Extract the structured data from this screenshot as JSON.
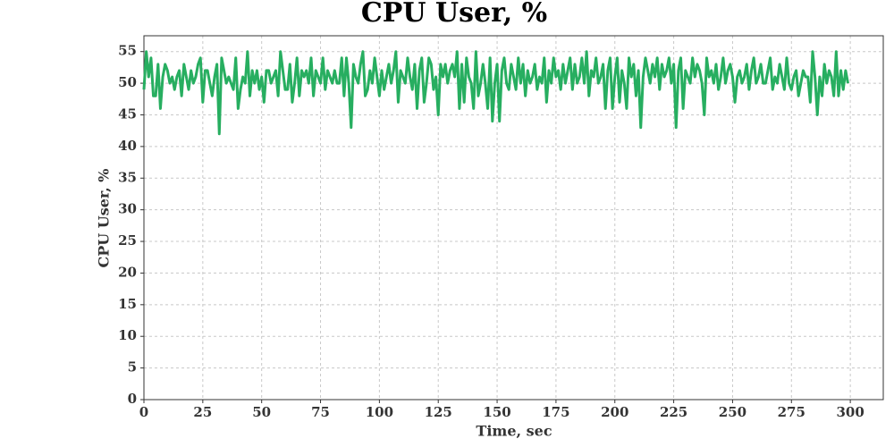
{
  "chart_data": {
    "type": "line",
    "title": "CPU User, %",
    "xlabel": "Time, sec",
    "ylabel": "CPU User, %",
    "x": [
      0,
      1,
      2,
      3,
      4,
      5,
      6,
      7,
      8,
      9,
      10,
      11,
      12,
      13,
      14,
      15,
      16,
      17,
      18,
      19,
      20,
      21,
      22,
      23,
      24,
      25,
      26,
      27,
      28,
      29,
      30,
      31,
      32,
      33,
      34,
      35,
      36,
      37,
      38,
      39,
      40,
      41,
      42,
      43,
      44,
      45,
      46,
      47,
      48,
      49,
      50,
      51,
      52,
      53,
      54,
      55,
      56,
      57,
      58,
      59,
      60,
      61,
      62,
      63,
      64,
      65,
      66,
      67,
      68,
      69,
      70,
      71,
      72,
      73,
      74,
      75,
      76,
      77,
      78,
      79,
      80,
      81,
      82,
      83,
      84,
      85,
      86,
      87,
      88,
      89,
      90,
      91,
      92,
      93,
      94,
      95,
      96,
      97,
      98,
      99,
      100,
      101,
      102,
      103,
      104,
      105,
      106,
      107,
      108,
      109,
      110,
      111,
      112,
      113,
      114,
      115,
      116,
      117,
      118,
      119,
      120,
      121,
      122,
      123,
      124,
      125,
      126,
      127,
      128,
      129,
      130,
      131,
      132,
      133,
      134,
      135,
      136,
      137,
      138,
      139,
      140,
      141,
      142,
      143,
      144,
      145,
      146,
      147,
      148,
      149,
      150,
      151,
      152,
      153,
      154,
      155,
      156,
      157,
      158,
      159,
      160,
      161,
      162,
      163,
      164,
      165,
      166,
      167,
      168,
      169,
      170,
      171,
      172,
      173,
      174,
      175,
      176,
      177,
      178,
      179,
      180,
      181,
      182,
      183,
      184,
      185,
      186,
      187,
      188,
      189,
      190,
      191,
      192,
      193,
      194,
      195,
      196,
      197,
      198,
      199,
      200,
      201,
      202,
      203,
      204,
      205,
      206,
      207,
      208,
      209,
      210,
      211,
      212,
      213,
      214,
      215,
      216,
      217,
      218,
      219,
      220,
      221,
      222,
      223,
      224,
      225,
      226,
      227,
      228,
      229,
      230,
      231,
      232,
      233,
      234,
      235,
      236,
      237,
      238,
      239,
      240,
      241,
      242,
      243,
      244,
      245,
      246,
      247,
      248,
      249,
      250,
      251,
      252,
      253,
      254,
      255,
      256,
      257,
      258,
      259,
      260,
      261,
      262,
      263,
      264,
      265,
      266,
      267,
      268,
      269,
      270,
      271,
      272,
      273,
      274,
      275,
      276,
      277,
      278,
      279,
      280,
      281,
      282,
      283,
      284,
      285,
      286,
      287,
      288,
      289,
      290,
      291,
      292,
      293,
      294,
      295,
      296,
      297,
      298,
      299
    ],
    "series": [
      {
        "name": "CPU User",
        "color": "#27ae60",
        "values": [
          49,
          55,
          51,
          54,
          48,
          48,
          53,
          46,
          51,
          53,
          52,
          50,
          51,
          49,
          51,
          52,
          48,
          53,
          51,
          49,
          52,
          50,
          51,
          53,
          54,
          47,
          52,
          52,
          50,
          48,
          51,
          53,
          42,
          54,
          52,
          50,
          51,
          50,
          49,
          54,
          46,
          49,
          51,
          50,
          55,
          48,
          52,
          50,
          52,
          49,
          51,
          47,
          52,
          52,
          50,
          51,
          52,
          48,
          55,
          52,
          49,
          49,
          53,
          47,
          50,
          54,
          48,
          52,
          51,
          52,
          50,
          54,
          48,
          52,
          51,
          50,
          54,
          49,
          52,
          51,
          50,
          52,
          50,
          50,
          54,
          48,
          54,
          50,
          43,
          53,
          51,
          50,
          53,
          55,
          48,
          49,
          52,
          50,
          54,
          51,
          48,
          52,
          49,
          51,
          53,
          50,
          52,
          55,
          47,
          52,
          51,
          50,
          54,
          51,
          49,
          53,
          46,
          52,
          54,
          47,
          50,
          54,
          53,
          49,
          51,
          45,
          53,
          51,
          53,
          50,
          52,
          53,
          51,
          55,
          46,
          53,
          47,
          54,
          51,
          50,
          46,
          55,
          48,
          50,
          53,
          50,
          46,
          54,
          44,
          50,
          53,
          44,
          52,
          54,
          50,
          49,
          53,
          51,
          49,
          54,
          50,
          53,
          48,
          52,
          50,
          51,
          53,
          49,
          51,
          50,
          54,
          47,
          52,
          50,
          54,
          51,
          52,
          49,
          53,
          50,
          52,
          54,
          49,
          53,
          50,
          51,
          54,
          50,
          55,
          48,
          52,
          51,
          54,
          50,
          51,
          53,
          46,
          52,
          54,
          46,
          51,
          54,
          47,
          52,
          50,
          46,
          54,
          51,
          53,
          48,
          52,
          43,
          51,
          54,
          52,
          50,
          53,
          51,
          54,
          49,
          53,
          51,
          52,
          54,
          50,
          53,
          43,
          52,
          54,
          46,
          52,
          51,
          50,
          54,
          51,
          53,
          52,
          50,
          45,
          54,
          51,
          52,
          50,
          53,
          49,
          51,
          54,
          50,
          52,
          53,
          51,
          47,
          51,
          52,
          50,
          51,
          53,
          49,
          52,
          54,
          50,
          51,
          53,
          50,
          50,
          52,
          54,
          49,
          51,
          50,
          53,
          51,
          49,
          54,
          50,
          49,
          51,
          52,
          48,
          50,
          52,
          51,
          51,
          47,
          55,
          51,
          45,
          51,
          48,
          53,
          50,
          52,
          51,
          48,
          55,
          48,
          52,
          49,
          52,
          50
        ]
      }
    ],
    "xlim": [
      0,
      314
    ],
    "ylim": [
      0,
      57.5
    ],
    "xticks": [
      0,
      25,
      50,
      75,
      100,
      125,
      150,
      175,
      200,
      225,
      250,
      275,
      300
    ],
    "yticks": [
      0,
      5,
      10,
      15,
      20,
      25,
      30,
      35,
      40,
      45,
      50,
      55
    ],
    "grid": true
  }
}
